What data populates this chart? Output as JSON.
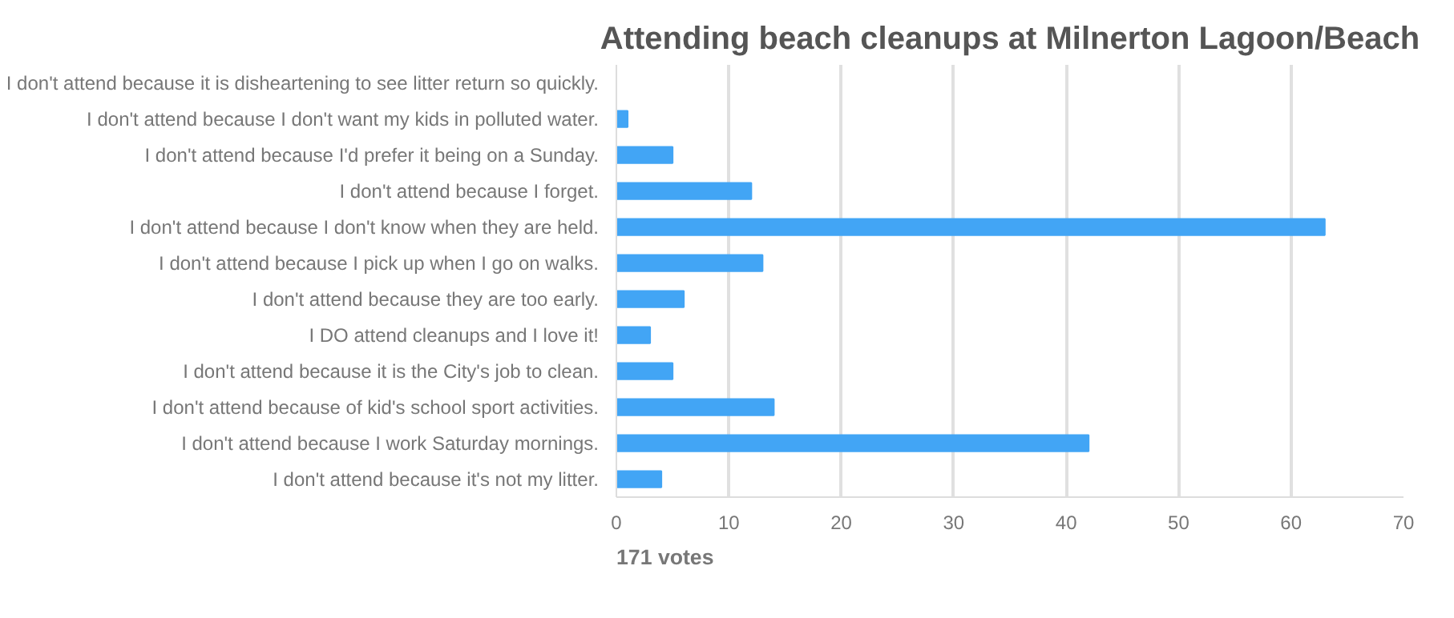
{
  "chart_data": {
    "type": "bar",
    "orientation": "horizontal",
    "title": "Attending beach cleanups at Milnerton Lagoon/Beach",
    "categories": [
      "I don't attend because it is disheartening to see litter return so quickly.",
      "I don't attend because I don't want my kids in polluted water.",
      "I don't attend because I'd prefer it being on a Sunday.",
      "I don't attend because I forget.",
      "I don't attend because I don't know when they are held.",
      "I don't attend because I pick up when I go on walks.",
      "I don't attend because they are too early.",
      "I DO attend cleanups and I love it!",
      "I don't attend because it is the City's job to clean.",
      "I don't attend because of kid's school sport activities.",
      "I don't attend because I work Saturday mornings.",
      "I don't attend because it's not my litter."
    ],
    "values": [
      0,
      1,
      5,
      12,
      63,
      13,
      6,
      3,
      5,
      14,
      42,
      4
    ],
    "color": "#42a5f5",
    "xlim": [
      0,
      70
    ],
    "xticks": [
      0,
      10,
      20,
      30,
      40,
      50,
      60,
      70
    ],
    "grid": "x",
    "annotations": [
      "171 votes"
    ]
  }
}
